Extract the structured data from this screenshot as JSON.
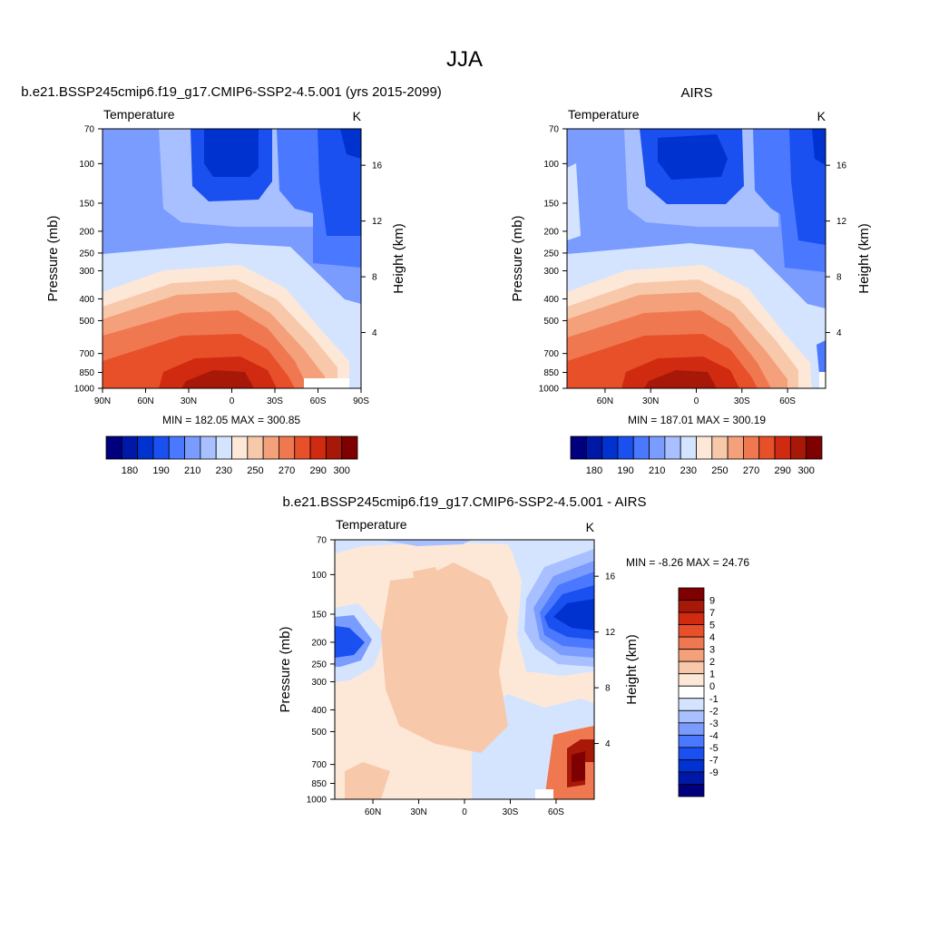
{
  "figure": {
    "title": "JJA"
  },
  "colors": {
    "abs": [
      "#00007f",
      "#0018a8",
      "#0032d0",
      "#1a4ff0",
      "#4a78ff",
      "#7a9cff",
      "#a8c0ff",
      "#d4e4ff",
      "#fde8d8",
      "#f8c8aa",
      "#f4a07a",
      "#f07850",
      "#e8502a",
      "#d02a10",
      "#a81808",
      "#7f0000"
    ],
    "diff": [
      "#00007f",
      "#0018a8",
      "#0032d0",
      "#1a4ff0",
      "#4a78ff",
      "#7a9cff",
      "#a8c0ff",
      "#d4e4ff",
      "#ffffff",
      "#fde8d8",
      "#f8c8aa",
      "#f4a07a",
      "#f07850",
      "#e8502a",
      "#d02a10",
      "#a81808",
      "#7f0000"
    ]
  },
  "chart_data": [
    {
      "type": "heatmap",
      "title": "b.e21.BSSP245cmip6.f19_g17.CMIP6-SSP2-4.5.001 (yrs 2015-2099)",
      "left_label": "Temperature",
      "right_label": "K",
      "ylabel": "Pressure (mb)",
      "ylabel_right": "Height (km)",
      "xticks": [
        "90N",
        "60N",
        "30N",
        "0",
        "30S",
        "60S",
        "90S"
      ],
      "yticks": [
        "70",
        "100",
        "150",
        "200",
        "250",
        "300",
        "400",
        "500",
        "700",
        "850",
        "1000"
      ],
      "yticks_right": [
        "16",
        "12",
        "8",
        "4"
      ],
      "stats": "MIN = 182.05  MAX = 300.85",
      "colorbar_labels": [
        "180",
        "190",
        "210",
        "230",
        "250",
        "270",
        "290",
        "300"
      ],
      "grid": false
    },
    {
      "type": "heatmap",
      "title": "AIRS",
      "left_label": "Temperature",
      "right_label": "K",
      "ylabel": "Pressure (mb)",
      "ylabel_right": "Height (km)",
      "xticks": [
        "60N",
        "30N",
        "0",
        "30S",
        "60S"
      ],
      "yticks": [
        "70",
        "100",
        "150",
        "200",
        "250",
        "300",
        "400",
        "500",
        "700",
        "850",
        "1000"
      ],
      "yticks_right": [
        "16",
        "12",
        "8",
        "4"
      ],
      "stats": "MIN = 187.01  MAX = 300.19",
      "colorbar_labels": [
        "180",
        "190",
        "210",
        "230",
        "250",
        "270",
        "290",
        "300"
      ],
      "grid": false
    },
    {
      "type": "heatmap",
      "title": "b.e21.BSSP245cmip6.f19_g17.CMIP6-SSP2-4.5.001 - AIRS",
      "left_label": "Temperature",
      "right_label": "K",
      "ylabel": "Pressure (mb)",
      "ylabel_right": "Height (km)",
      "xticks": [
        "60N",
        "30N",
        "0",
        "30S",
        "60S"
      ],
      "yticks": [
        "70",
        "100",
        "150",
        "200",
        "250",
        "300",
        "400",
        "500",
        "700",
        "850",
        "1000"
      ],
      "yticks_right": [
        "16",
        "12",
        "8",
        "4"
      ],
      "stats": "MIN =  -8.26  MAX =  24.76",
      "colorbar_labels": [
        "9",
        "7",
        "5",
        "4",
        "3",
        "2",
        "1",
        "0",
        "-1",
        "-2",
        "-3",
        "-4",
        "-5",
        "-7",
        "-9"
      ],
      "grid": false
    }
  ]
}
